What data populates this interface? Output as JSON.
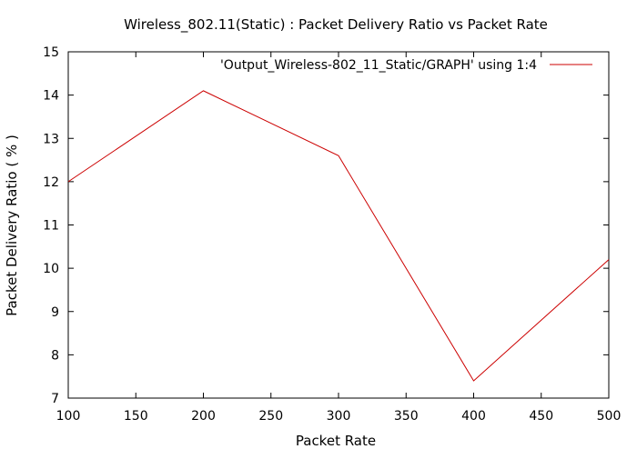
{
  "chart_data": {
    "type": "line",
    "title": "Wireless_802.11(Static) : Packet Delivery Ratio vs Packet Rate",
    "xlabel": "Packet Rate",
    "ylabel": "Packet Delivery Ratio ( % )",
    "xlim": [
      100,
      500
    ],
    "ylim": [
      7,
      15
    ],
    "xticks": [
      100,
      150,
      200,
      250,
      300,
      350,
      400,
      450,
      500
    ],
    "yticks": [
      7,
      8,
      9,
      10,
      11,
      12,
      13,
      14,
      15
    ],
    "grid": false,
    "legend_position": "top-right",
    "series": [
      {
        "name": "'Output_Wireless-802_11_Static/GRAPH' using 1:4",
        "color": "#cc0000",
        "x": [
          100,
          200,
          300,
          400,
          500
        ],
        "y": [
          12.0,
          14.1,
          12.6,
          7.4,
          10.2
        ]
      }
    ]
  }
}
